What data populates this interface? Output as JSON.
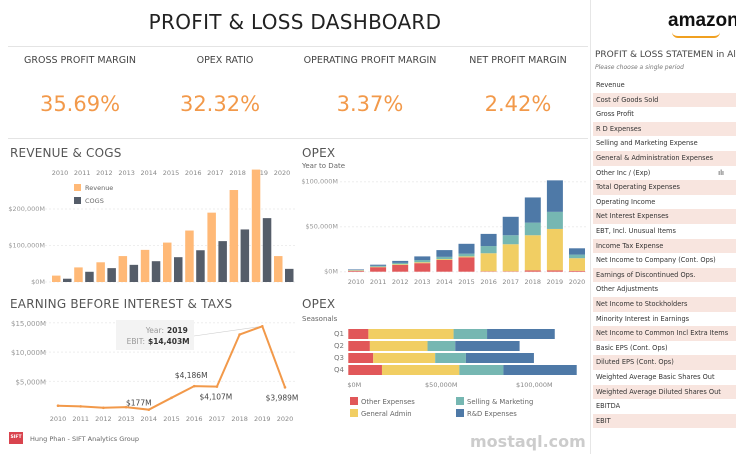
{
  "header": {
    "title": "PROFIT & LOSS DASHBOARD",
    "logo": "amazon"
  },
  "kpis": [
    {
      "label": "GROSS PROFIT MARGIN",
      "value": "35.69%"
    },
    {
      "label": "OPEX RATIO",
      "value": "32.32%"
    },
    {
      "label": "OPERATING PROFIT MARGIN",
      "value": "3.37%"
    },
    {
      "label": "NET PROFIT MARGIN",
      "value": "2.42%"
    }
  ],
  "colors": {
    "accent": "#f2994a",
    "revenue": "#ffb977",
    "cogs": "#555d69",
    "other": "#e15759",
    "ga": "#f1ce63",
    "sm": "#76b7b2",
    "rd": "#4e79a7"
  },
  "panel": {
    "title": "PROFIT & LOSS STATEMEN in All",
    "subtitle": "Please choose a single period",
    "items": [
      "Revenue",
      "Cost of Goods Sold",
      "Gross Profit",
      "R D Expenses",
      "Selling and Marketing Expense",
      "General & Administration Expenses",
      "Other Inc / (Exp)",
      "Total Operating Expenses",
      "Operating Income",
      "Net Interest Expenses",
      "EBT, Incl. Unusual Items",
      "Income Tax Expense",
      "Net Income to Company (Cont. Ops)",
      "Earnings of Discontinued Ops.",
      "Other Adjustments",
      "Net Income to Stockholders",
      "Minority Interest in Earnings",
      "Net Income to Common Incl Extra Items",
      "Basic EPS (Cont. Ops)",
      "Diluted EPS (Cont. Ops)",
      "Weighted Average Basic Shares Out",
      "Weighted Average Diluted Shares Out",
      "EBITDA",
      "EBIT"
    ],
    "chart_icon": "bar-chart-icon"
  },
  "footer": {
    "text": "Hung Phan - SIFT Analytics Group",
    "logo": "SIFT"
  },
  "watermark": "mostaql.com",
  "chart_data": [
    {
      "type": "bar",
      "title": "REVENUE & COGS",
      "categories": [
        "2010",
        "2011",
        "2012",
        "2013",
        "2014",
        "2015",
        "2016",
        "2017",
        "2018",
        "2019",
        "2020"
      ],
      "yticks": [
        "$0M",
        "$100,000M",
        "$200,000M"
      ],
      "ylim": [
        0,
        320000
      ],
      "grid": true,
      "legend": "top-left",
      "series": [
        {
          "name": "Revenue",
          "values": [
            17500,
            40000,
            54000,
            71000,
            88000,
            108000,
            141000,
            190000,
            252000,
            308000,
            71000
          ]
        },
        {
          "name": "COGS",
          "values": [
            9000,
            28000,
            38000,
            47000,
            57000,
            68000,
            87000,
            112000,
            144000,
            175000,
            36000
          ]
        }
      ]
    },
    {
      "type": "bar",
      "stacked": true,
      "title": "OPEX",
      "subtitle": "Year to Date",
      "categories": [
        "2010",
        "2011",
        "2012",
        "2013",
        "2014",
        "2015",
        "2016",
        "2017",
        "2018",
        "2019",
        "2020"
      ],
      "yticks": [
        "$0M",
        "$50,000M",
        "$100,000M"
      ],
      "ylim": [
        0,
        105000
      ],
      "series": [
        {
          "values": [
            1000,
            5000,
            7500,
            9500,
            13000,
            16000,
            500,
            500,
            1500,
            1500,
            1000
          ]
        },
        {
          "values": [
            500,
            500,
            800,
            1000,
            1000,
            1000,
            20000,
            30000,
            39000,
            46000,
            14000
          ]
        },
        {
          "values": [
            500,
            1000,
            1500,
            2500,
            2500,
            3000,
            8000,
            10000,
            14000,
            19000,
            4000
          ]
        },
        {
          "values": [
            600,
            1300,
            2200,
            4000,
            7500,
            11000,
            13500,
            20500,
            28000,
            35000,
            7000
          ]
        }
      ]
    },
    {
      "type": "line",
      "title": "EARNING BEFORE INTEREST & TAXS",
      "categories": [
        "2010",
        "2011",
        "2012",
        "2013",
        "2014",
        "2015",
        "2016",
        "2017",
        "2018",
        "2019",
        "2020"
      ],
      "yticks": [
        "$5,000M",
        "$10,000M",
        "$15,000M"
      ],
      "ylim": [
        0,
        15500
      ],
      "values": [
        850,
        740,
        500,
        600,
        177,
        2200,
        4186,
        4107,
        13000,
        14403,
        3989
      ],
      "labels": {
        "4": "$177M",
        "6": "$4,186M",
        "7": "$4,107M",
        "9": "",
        "10": "$3,989M"
      },
      "tooltip": {
        "year_label": "Year:",
        "year": "2019",
        "ebit_label": "EBIT:",
        "ebit": "$14,403M"
      }
    },
    {
      "type": "bar",
      "orientation": "horizontal",
      "stacked": true,
      "title": "OPEX",
      "subtitle": "Seasonals",
      "categories": [
        "Q1",
        "Q2",
        "Q3",
        "Q4"
      ],
      "xticks": [
        "$0M",
        "$50,000M",
        "$100,000M"
      ],
      "legend": "bottom",
      "series": [
        {
          "name": "Other Expenses",
          "values": [
            10800,
            11600,
            13400,
            18100
          ]
        },
        {
          "name": "General Admin",
          "values": [
            45800,
            31000,
            33300,
            41600
          ]
        },
        {
          "name": "Selling & Marketing",
          "values": [
            18000,
            14900,
            16500,
            23700
          ]
        },
        {
          "name": "R&D Expenses",
          "values": [
            36400,
            34600,
            36600,
            39400
          ]
        }
      ]
    }
  ]
}
